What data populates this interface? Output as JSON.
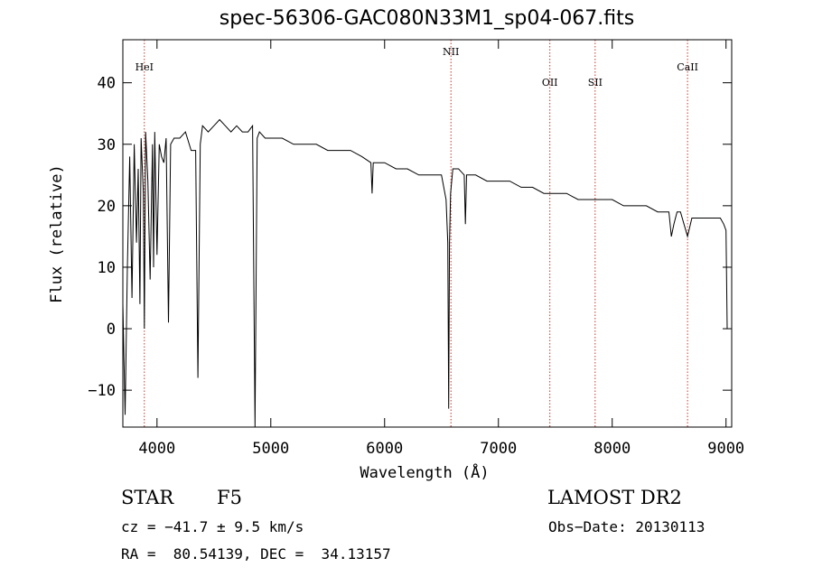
{
  "chart_data": {
    "type": "line",
    "title": "spec-56306-GAC080N33M1_sp04-067.fits",
    "xlabel": "Wavelength (Å)",
    "ylabel": "Flux (relative)",
    "xlim": [
      3700,
      9050
    ],
    "ylim": [
      -16,
      47
    ],
    "xticks": [
      4000,
      5000,
      6000,
      7000,
      8000,
      9000
    ],
    "yticks": [
      -10,
      0,
      10,
      20,
      30,
      40
    ],
    "grid": false,
    "series": [
      {
        "x": [
          3700,
          3720,
          3740,
          3760,
          3780,
          3800,
          3820,
          3835,
          3850,
          3860,
          3880,
          3889,
          3900,
          3920,
          3940,
          3960,
          3970,
          3980,
          4000,
          4020,
          4040,
          4060,
          4080,
          4101,
          4120,
          4150,
          4200,
          4250,
          4300,
          4340,
          4360,
          4380,
          4400,
          4450,
          4500,
          4550,
          4600,
          4650,
          4700,
          4750,
          4800,
          4840,
          4861,
          4880,
          4900,
          4950,
          5000,
          5100,
          5200,
          5300,
          5400,
          5500,
          5600,
          5700,
          5800,
          5880,
          5890,
          5900,
          5950,
          6000,
          6100,
          6200,
          6300,
          6400,
          6500,
          6540,
          6555,
          6563,
          6570,
          6580,
          6600,
          6650,
          6700,
          6710,
          6720,
          6750,
          6800,
          6900,
          7000,
          7100,
          7200,
          7300,
          7400,
          7500,
          7600,
          7700,
          7800,
          7900,
          8000,
          8100,
          8200,
          8300,
          8400,
          8498,
          8520,
          8542,
          8570,
          8600,
          8662,
          8700,
          8800,
          8850,
          8900,
          8950,
          8980,
          9000,
          9010
        ],
        "values": [
          4,
          -14,
          10,
          28,
          5,
          30,
          14,
          26,
          4,
          31,
          22,
          0,
          32,
          24,
          8,
          30,
          10,
          32,
          12,
          30,
          28,
          27,
          31,
          1,
          30,
          31,
          31,
          32,
          29,
          29,
          -8,
          30,
          33,
          32,
          33,
          34,
          33,
          32,
          33,
          32,
          32,
          33,
          -16,
          31,
          32,
          31,
          31,
          31,
          30,
          30,
          30,
          29,
          29,
          29,
          28,
          27,
          22,
          27,
          27,
          27,
          26,
          26,
          25,
          25,
          25,
          21,
          14,
          -13,
          14,
          22,
          26,
          26,
          25,
          17,
          25,
          25,
          25,
          24,
          24,
          24,
          23,
          23,
          22,
          22,
          22,
          21,
          21,
          21,
          21,
          20,
          20,
          20,
          19,
          19,
          15,
          17,
          19,
          19,
          15,
          18,
          18,
          18,
          18,
          18,
          17,
          16,
          0
        ]
      }
    ],
    "annotations": [
      {
        "label": "HeI",
        "x": 3889
      },
      {
        "label": "NII",
        "x": 6583
      },
      {
        "label": "OII",
        "x": 7452
      },
      {
        "label": "SII",
        "x": 7850
      },
      {
        "label": "CaII",
        "x": 8662
      }
    ]
  },
  "info": {
    "object_class": "STAR",
    "subclass": "F5",
    "survey": "LAMOST DR2",
    "velocity": "cz = −41.7 ± 9.5 km/s",
    "obs_date": "Obs−Date: 20130113",
    "coords": "RA =  80.54139, DEC =  34.13157"
  },
  "colors": {
    "spectrum": "#000000",
    "line_markers": "#c0392b"
  }
}
